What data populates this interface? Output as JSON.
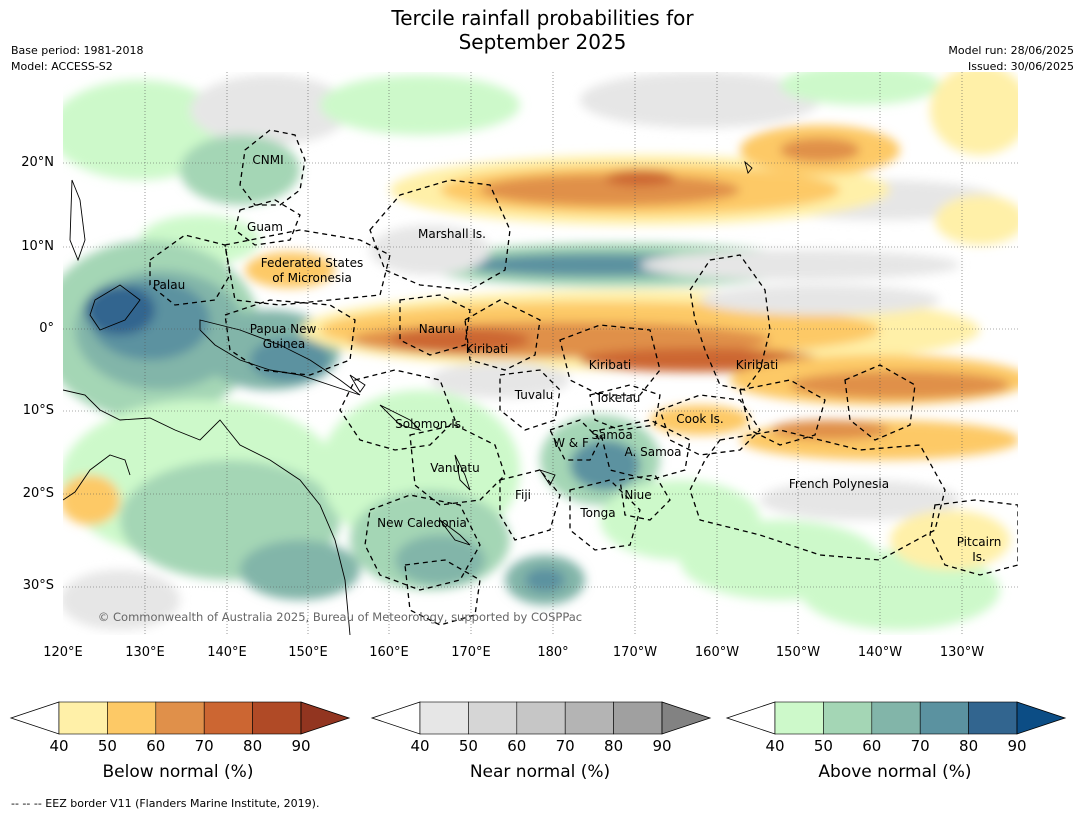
{
  "title_line1": "Tercile rainfall probabilities for",
  "title_line2": "September 2025",
  "base_period": "Base period: 1981-2018",
  "model": "Model: ACCESS-S2",
  "model_run": "Model run: 28/06/2025",
  "issued": "Issued: 30/06/2025",
  "copyright": "© Commonwealth of Australia 2025, Bureau of Meteorology, supported by COSPPac",
  "footer": "--  --  -- EEZ border V11 (Flanders Marine Institute, 2019).",
  "lat_labels": [
    "20°N",
    "10°N",
    "0°",
    "10°S",
    "20°S",
    "30°S"
  ],
  "lon_labels": [
    "120°E",
    "130°E",
    "140°E",
    "150°E",
    "160°E",
    "170°E",
    "180°",
    "170°W",
    "160°W",
    "150°W",
    "140°W",
    "130°W"
  ],
  "regions": [
    "CNMI",
    "Guam",
    "Marshall Is.",
    "Federated States",
    "of Micronesia",
    "Palau",
    "Papua New",
    "Guinea",
    "Nauru",
    "Kiribati",
    "Kiribati",
    "Kiribati",
    "Tuvalu",
    "Tokelau",
    "Cook Is.",
    "Solomon Is.",
    "Samoa",
    "W & F",
    "A. Samoa",
    "Vanuatu",
    "Fiji",
    "Niue",
    "Tonga",
    "French Polynesia",
    "New Caledonia",
    "Pitcairn",
    "Is."
  ],
  "colorbars": [
    {
      "title": "Below normal (%)",
      "ticks": [
        "40",
        "50",
        "60",
        "70",
        "80",
        "90"
      ],
      "colors": [
        "#fff0a8",
        "#fdc966",
        "#e0904a",
        "#cc6632",
        "#b04a26",
        "#923520"
      ]
    },
    {
      "title": "Near normal (%)",
      "ticks": [
        "40",
        "50",
        "60",
        "70",
        "80",
        "90"
      ],
      "colors": [
        "#e6e6e6",
        "#d6d6d6",
        "#c6c6c6",
        "#b4b4b4",
        "#a0a0a0",
        "#828282"
      ]
    },
    {
      "title": "Above normal (%)",
      "ticks": [
        "40",
        "50",
        "60",
        "70",
        "80",
        "90"
      ],
      "colors": [
        "#cdf9ca",
        "#a4d6b5",
        "#82b5a9",
        "#5b92a0",
        "#32658f",
        "#0c4d85"
      ]
    }
  ]
}
